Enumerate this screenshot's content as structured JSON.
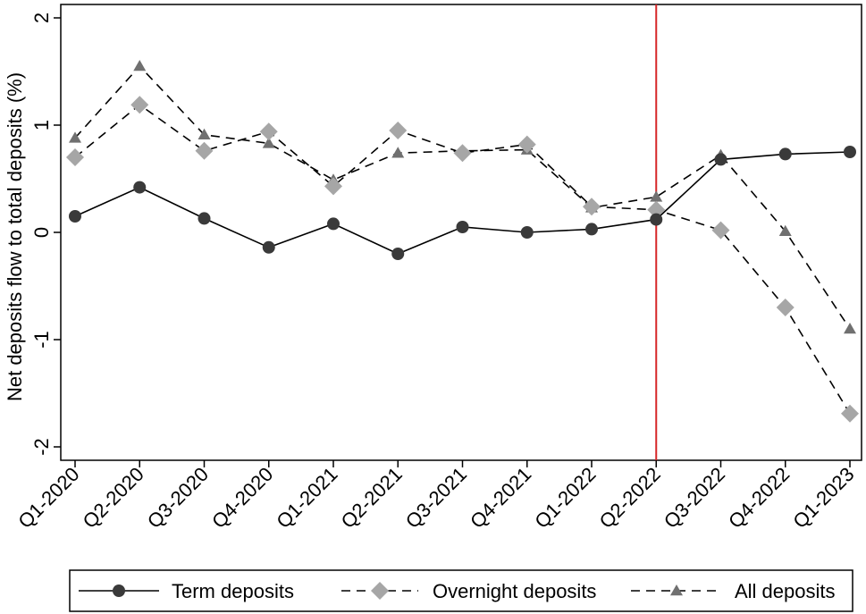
{
  "chart_data": {
    "type": "line",
    "title": "",
    "xlabel": "",
    "ylabel": "Net deposits flow to total deposits (%)",
    "categories": [
      "Q1-2020",
      "Q2-2020",
      "Q3-2020",
      "Q4-2020",
      "Q1-2021",
      "Q2-2021",
      "Q3-2021",
      "Q4-2021",
      "Q1-2022",
      "Q2-2022",
      "Q3-2022",
      "Q4-2022",
      "Q1-2023"
    ],
    "ylim": [
      -2.1,
      2.1
    ],
    "yticks": [
      2,
      1,
      0,
      -1,
      -2
    ],
    "ytick_labels": [
      "2",
      "1",
      "0",
      "-1",
      "-2"
    ],
    "grid": false,
    "legend_position": "bottom",
    "reference_line": {
      "x": "Q2-2022",
      "color": "#d62728"
    },
    "series": [
      {
        "name": "Term deposits",
        "marker": "circle",
        "line_style": "solid",
        "color": "#3a3a3a",
        "values": [
          0.15,
          0.42,
          0.13,
          -0.14,
          0.08,
          -0.2,
          0.05,
          0.0,
          0.03,
          0.12,
          0.68,
          0.73,
          0.75
        ]
      },
      {
        "name": "Overnight deposits",
        "marker": "diamond",
        "line_style": "dashed",
        "color": "#a6a6a6",
        "values": [
          0.7,
          1.19,
          0.76,
          0.94,
          0.43,
          0.95,
          0.74,
          0.82,
          0.24,
          0.21,
          0.02,
          -0.7,
          -1.69
        ]
      },
      {
        "name": "All deposits",
        "marker": "triangle",
        "line_style": "dashed",
        "color": "#707070",
        "values": [
          0.88,
          1.55,
          0.91,
          0.83,
          0.49,
          0.74,
          0.76,
          0.77,
          0.23,
          0.33,
          0.72,
          0.01,
          -0.9
        ]
      }
    ]
  }
}
